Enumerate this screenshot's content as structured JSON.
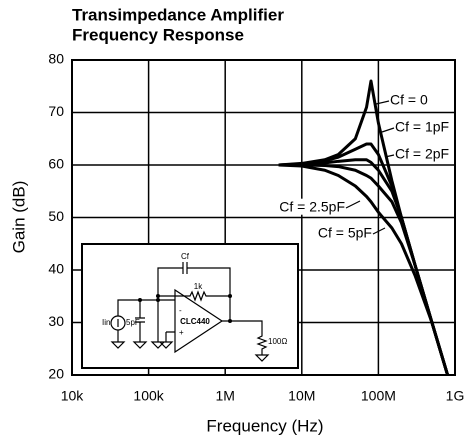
{
  "chart_data": {
    "type": "line",
    "title": [
      "Transimpedance Amplifier",
      "Frequency Response"
    ],
    "x_label": "Frequency (Hz)",
    "y_label": "Gain (dB)",
    "log_x": true,
    "grid": true,
    "xlim": [
      10000,
      1000000000
    ],
    "xticks": [
      {
        "value": 10000,
        "label": "10k"
      },
      {
        "value": 100000,
        "label": "100k"
      },
      {
        "value": 1000000,
        "label": "1M"
      },
      {
        "value": 10000000,
        "label": "10M"
      },
      {
        "value": 100000000,
        "label": "100M"
      },
      {
        "value": 1000000000,
        "label": "1G"
      }
    ],
    "ylim": [
      20,
      80
    ],
    "yticks": [
      20,
      30,
      40,
      50,
      60,
      70,
      80
    ],
    "x": [
      5000000,
      10000000,
      20000000,
      30000000,
      50000000,
      70000000,
      80000000,
      100000000,
      150000000,
      200000000,
      300000000,
      500000000,
      800000000
    ],
    "series": [
      {
        "name": "Cf = 0",
        "color": "#000000",
        "values": [
          60,
          60.3,
          61,
          62,
          65,
          71,
          76,
          68,
          57,
          50,
          41,
          30,
          20
        ]
      },
      {
        "name": "Cf = 1pF",
        "color": "#000000",
        "values": [
          60,
          60.2,
          60.8,
          61.5,
          63,
          64,
          64,
          62,
          56,
          50,
          41,
          30,
          20
        ]
      },
      {
        "name": "Cf = 2pF",
        "color": "#000000",
        "values": [
          60,
          60.1,
          60.4,
          60.7,
          61,
          61,
          60.5,
          59,
          55,
          50,
          41,
          30,
          20
        ]
      },
      {
        "name": "Cf = 2.5pF",
        "color": "#000000",
        "values": [
          60,
          60,
          59.9,
          59.7,
          59,
          58,
          57.5,
          56,
          53,
          49,
          41,
          30,
          20
        ]
      },
      {
        "name": "Cf = 5pF",
        "color": "#000000",
        "values": [
          60,
          59.8,
          59,
          58,
          56,
          54,
          53,
          51,
          48,
          45,
          39,
          30,
          20
        ]
      }
    ],
    "inset": {
      "cf": "Cf",
      "rf": "1k",
      "amp": "CLC440",
      "source": "Iin",
      "cin": "5pF",
      "load": "100Ω",
      "minus": "-",
      "plus": "+"
    }
  }
}
